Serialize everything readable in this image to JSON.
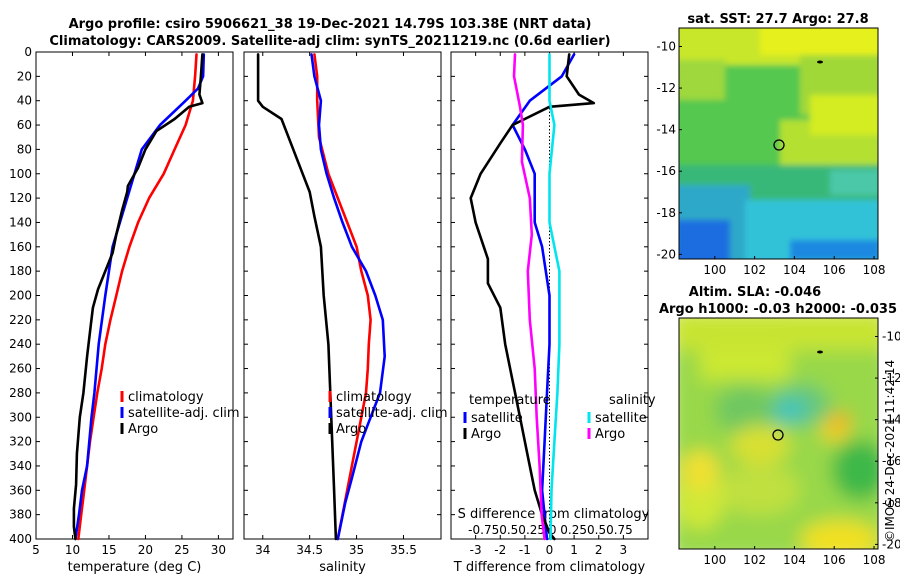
{
  "header": {
    "line1": "Argo profile: csiro 5906621_38 19-Dec-2021 14.79S 103.38E (NRT data)",
    "line2": "Climatology: CARS2009. Satellite-adj clim: synTS_20211219.nc (0.6d earlier)"
  },
  "colors": {
    "climatology": "#ff0000",
    "satellite_adj": "#0000ff",
    "argo": "#000000",
    "argo_salinity_diff": "#ff00ff",
    "satellite_salinity_diff": "#00e5ee"
  },
  "chart_data": [
    {
      "id": "temperature",
      "type": "line",
      "xlabel": "temperature (deg C)",
      "ylabel": "",
      "xlim": [
        5,
        32
      ],
      "ylim": [
        0,
        400
      ],
      "y_reversed": true,
      "xticks": [
        5,
        10,
        15,
        20,
        25,
        30
      ],
      "yticks": [
        0,
        20,
        40,
        60,
        80,
        100,
        120,
        140,
        160,
        180,
        200,
        220,
        240,
        260,
        280,
        300,
        320,
        340,
        360,
        380,
        400
      ],
      "legend": [
        "climatology",
        "satellite-adj. clim",
        "Argo"
      ],
      "legend_position": "lower-right",
      "series": [
        {
          "name": "climatology",
          "color": "#ff0000",
          "points": [
            [
              27.0,
              2
            ],
            [
              26.8,
              20
            ],
            [
              26.5,
              40
            ],
            [
              25.5,
              60
            ],
            [
              24.0,
              80
            ],
            [
              22.5,
              100
            ],
            [
              20.5,
              120
            ],
            [
              19.0,
              140
            ],
            [
              17.8,
              160
            ],
            [
              16.8,
              180
            ],
            [
              16.0,
              200
            ],
            [
              15.2,
              220
            ],
            [
              14.5,
              240
            ],
            [
              14.0,
              260
            ],
            [
              13.4,
              280
            ],
            [
              12.9,
              300
            ],
            [
              12.4,
              320
            ],
            [
              12.0,
              340
            ],
            [
              11.6,
              360
            ],
            [
              11.2,
              380
            ],
            [
              10.8,
              400
            ]
          ]
        },
        {
          "name": "satellite-adj. clim",
          "color": "#0000ff",
          "points": [
            [
              28.0,
              2
            ],
            [
              27.9,
              20
            ],
            [
              27.2,
              30
            ],
            [
              25.5,
              40
            ],
            [
              22.0,
              60
            ],
            [
              19.5,
              80
            ],
            [
              17.5,
              120
            ],
            [
              15.5,
              160
            ],
            [
              14.5,
              200
            ],
            [
              13.6,
              240
            ],
            [
              13.0,
              280
            ],
            [
              12.6,
              300
            ],
            [
              12.0,
              340
            ],
            [
              11.3,
              360
            ],
            [
              10.9,
              380
            ],
            [
              10.4,
              400
            ]
          ]
        },
        {
          "name": "Argo",
          "color": "#000000",
          "points": [
            [
              27.8,
              2
            ],
            [
              27.6,
              20
            ],
            [
              27.4,
              35
            ],
            [
              27.8,
              42
            ],
            [
              26.0,
              45
            ],
            [
              24.0,
              55
            ],
            [
              21.5,
              65
            ],
            [
              20.0,
              80
            ],
            [
              19.0,
              95
            ],
            [
              17.6,
              110
            ],
            [
              17.5,
              115
            ],
            [
              16.8,
              130
            ],
            [
              16.0,
              150
            ],
            [
              15.5,
              165
            ],
            [
              14.5,
              180
            ],
            [
              13.5,
              195
            ],
            [
              12.8,
              210
            ],
            [
              12.5,
              225
            ],
            [
              12.0,
              250
            ],
            [
              11.5,
              280
            ],
            [
              11.0,
              300
            ],
            [
              10.6,
              330
            ],
            [
              10.5,
              355
            ],
            [
              10.2,
              375
            ],
            [
              10.2,
              390
            ],
            [
              10.4,
              400
            ]
          ]
        }
      ]
    },
    {
      "id": "salinity",
      "type": "line",
      "xlabel": "salinity",
      "xlim": [
        33.8,
        35.9
      ],
      "ylim": [
        0,
        400
      ],
      "y_reversed": true,
      "xticks": [
        34,
        34.5,
        35,
        35.5
      ],
      "xticklabels": [
        "34",
        "34.5",
        "35",
        "35.5"
      ],
      "legend": [
        "climatology",
        "satellite-adj. clim",
        "Argo"
      ],
      "legend_position": "lower-right",
      "series": [
        {
          "name": "climatology",
          "color": "#ff0000",
          "points": [
            [
              34.55,
              2
            ],
            [
              34.58,
              20
            ],
            [
              34.58,
              40
            ],
            [
              34.6,
              70
            ],
            [
              34.7,
              100
            ],
            [
              34.8,
              120
            ],
            [
              34.9,
              140
            ],
            [
              35.0,
              160
            ],
            [
              35.05,
              180
            ],
            [
              35.12,
              200
            ],
            [
              35.15,
              220
            ],
            [
              35.13,
              240
            ],
            [
              35.12,
              260
            ],
            [
              35.1,
              280
            ],
            [
              35.05,
              300
            ],
            [
              35.0,
              320
            ],
            [
              34.95,
              340
            ],
            [
              34.9,
              360
            ],
            [
              34.85,
              380
            ],
            [
              34.8,
              400
            ]
          ]
        },
        {
          "name": "satellite-adj. clim",
          "color": "#0000ff",
          "points": [
            [
              34.52,
              2
            ],
            [
              34.55,
              20
            ],
            [
              34.62,
              40
            ],
            [
              34.6,
              60
            ],
            [
              34.62,
              80
            ],
            [
              34.68,
              100
            ],
            [
              34.76,
              120
            ],
            [
              34.85,
              140
            ],
            [
              34.95,
              160
            ],
            [
              35.1,
              180
            ],
            [
              35.2,
              200
            ],
            [
              35.28,
              220
            ],
            [
              35.3,
              250
            ],
            [
              35.25,
              280
            ],
            [
              35.15,
              300
            ],
            [
              35.05,
              320
            ],
            [
              34.95,
              350
            ],
            [
              34.88,
              370
            ],
            [
              34.8,
              400
            ]
          ]
        },
        {
          "name": "Argo",
          "color": "#000000",
          "points": [
            [
              33.95,
              2
            ],
            [
              33.95,
              20
            ],
            [
              33.95,
              40
            ],
            [
              34.0,
              45
            ],
            [
              34.2,
              55
            ],
            [
              34.3,
              75
            ],
            [
              34.4,
              95
            ],
            [
              34.5,
              115
            ],
            [
              34.55,
              135
            ],
            [
              34.62,
              160
            ],
            [
              34.65,
              200
            ],
            [
              34.7,
              240
            ],
            [
              34.72,
              280
            ],
            [
              34.74,
              320
            ],
            [
              34.76,
              360
            ],
            [
              34.78,
              400
            ]
          ]
        }
      ]
    },
    {
      "id": "difference",
      "type": "line",
      "xlabel": "T difference from climatology",
      "top_xlabel": "S difference from climatology",
      "xlim": [
        -4,
        4
      ],
      "top_xlim": [
        -1,
        1
      ],
      "ylim": [
        0,
        400
      ],
      "y_reversed": true,
      "xticks": [
        -3,
        -2,
        -1,
        0,
        1,
        2,
        3
      ],
      "top_xticks": [
        -0.75,
        -0.5,
        -0.25,
        0,
        0.25,
        0.5,
        0.75
      ],
      "top_xtick_text": "-0.750.50.25 0 0.250.50.75",
      "legend_temperature_title": "temperature",
      "legend_salinity_title": "salinity",
      "legend": [
        "satellite",
        "Argo",
        "satellite",
        "Argo"
      ],
      "series": [
        {
          "name": "temperature satellite",
          "color": "#0000ff",
          "points": [
            [
              1.0,
              2
            ],
            [
              0.5,
              20
            ],
            [
              -0.8,
              40
            ],
            [
              -1.5,
              60
            ],
            [
              -1.0,
              80
            ],
            [
              -0.6,
              100
            ],
            [
              -0.6,
              140
            ],
            [
              -0.3,
              160
            ],
            [
              0.0,
              200
            ],
            [
              0.0,
              240
            ],
            [
              -0.1,
              280
            ],
            [
              -0.2,
              320
            ],
            [
              -0.3,
              360
            ],
            [
              -0.1,
              400
            ]
          ]
        },
        {
          "name": "temperature Argo",
          "color": "#000000",
          "points": [
            [
              0.8,
              2
            ],
            [
              0.7,
              20
            ],
            [
              1.2,
              35
            ],
            [
              1.8,
              42
            ],
            [
              0.0,
              45
            ],
            [
              -1.5,
              60
            ],
            [
              -2.0,
              75
            ],
            [
              -2.8,
              100
            ],
            [
              -3.2,
              120
            ],
            [
              -3.0,
              140
            ],
            [
              -2.5,
              170
            ],
            [
              -2.5,
              190
            ],
            [
              -2.0,
              210
            ],
            [
              -1.8,
              240
            ],
            [
              -1.5,
              270
            ],
            [
              -1.2,
              300
            ],
            [
              -0.9,
              330
            ],
            [
              -0.6,
              360
            ],
            [
              -0.3,
              380
            ],
            [
              0.0,
              395
            ],
            [
              0.2,
              400
            ]
          ]
        },
        {
          "name": "salinity satellite",
          "color": "#00e5ee",
          "points": [
            [
              0.0,
              2
            ],
            [
              0.0,
              40
            ],
            [
              0.05,
              60
            ],
            [
              0.0,
              100
            ],
            [
              0.0,
              140
            ],
            [
              0.05,
              160
            ],
            [
              0.1,
              180
            ],
            [
              0.1,
              200
            ],
            [
              0.1,
              240
            ],
            [
              0.08,
              280
            ],
            [
              0.05,
              320
            ],
            [
              0.02,
              360
            ],
            [
              0.01,
              400
            ]
          ]
        },
        {
          "name": "salinity Argo",
          "color": "#ff00ff",
          "points": [
            [
              -0.35,
              2
            ],
            [
              -0.36,
              20
            ],
            [
              -0.3,
              45
            ],
            [
              -0.27,
              60
            ],
            [
              -0.28,
              90
            ],
            [
              -0.2,
              120
            ],
            [
              -0.18,
              150
            ],
            [
              -0.22,
              180
            ],
            [
              -0.2,
              220
            ],
            [
              -0.15,
              260
            ],
            [
              -0.13,
              300
            ],
            [
              -0.1,
              340
            ],
            [
              -0.08,
              380
            ],
            [
              -0.05,
              400
            ]
          ]
        }
      ]
    }
  ],
  "maps": [
    {
      "id": "sst",
      "title": "sat. SST: 27.7 Argo: 27.8",
      "xticks": [
        "100",
        "102",
        "104",
        "106",
        "108"
      ],
      "yticks": [
        "-10",
        "-12",
        "-14",
        "-16",
        "-18",
        "-20"
      ]
    },
    {
      "id": "sla",
      "title_line1": "Altim. SLA: -0.046",
      "title_line2": "Argo h1000: -0.03 h2000: -0.035",
      "xticks": [
        "100",
        "102",
        "104",
        "106",
        "108"
      ],
      "yticks": [
        "-10",
        "-12",
        "-14",
        "-16",
        "-18",
        "-20"
      ]
    }
  ],
  "footer": {
    "timestamp": "©IMOS 24-Dec-2021 11:42:14"
  }
}
